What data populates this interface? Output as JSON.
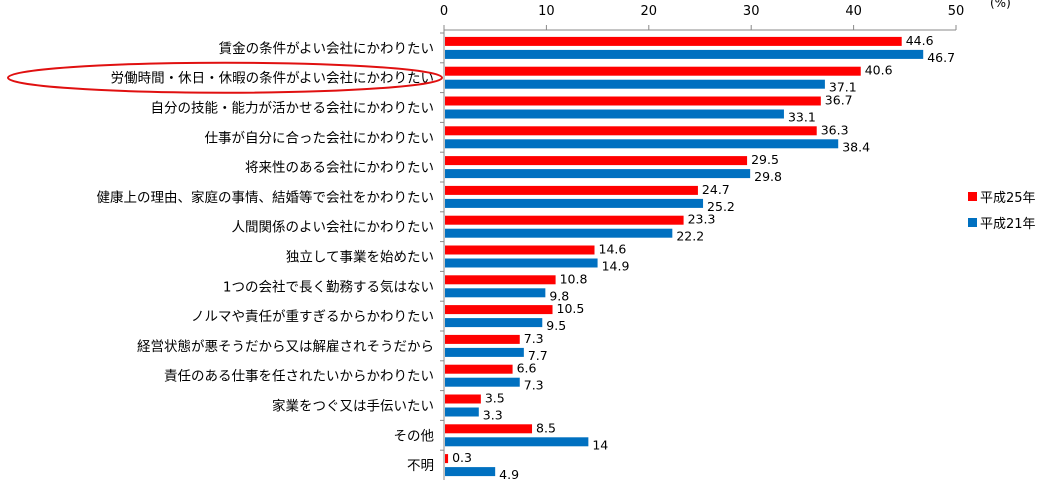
{
  "chart_data": {
    "type": "bar",
    "orientation": "horizontal",
    "unit_label": "(%)",
    "xlim": [
      0,
      50
    ],
    "x_ticks": [
      0,
      10,
      20,
      30,
      40,
      50
    ],
    "grid": false,
    "legend_position": "right",
    "categories": [
      "賃金の条件がよい会社にかわりたい",
      "労働時間・休日・休暇の条件がよい会社にかわりたい",
      "自分の技能・能力が活かせる会社にかわりたい",
      "仕事が自分に合った会社にかわりたい",
      "将来性のある会社にかわりたい",
      "健康上の理由、家庭の事情、結婚等で会社をかわりたい",
      "人間関係のよい会社にかわりたい",
      "独立して事業を始めたい",
      "1つの会社で長く勤務する気はない",
      "ノルマや責任が重すぎるからかわりたい",
      "経営状態が悪そうだから又は解雇されそうだから",
      "責任のある仕事を任されたいからかわりたい",
      "家業をつぐ又は手伝いたい",
      "その他",
      "不明"
    ],
    "highlighted_category": "労働時間・休日・休暇の条件がよい会社にかわりたい",
    "series": [
      {
        "name": "平成25年",
        "color": "#ff0000",
        "values": [
          44.6,
          40.6,
          36.7,
          36.3,
          29.5,
          24.7,
          23.3,
          14.6,
          10.8,
          10.5,
          7.3,
          6.6,
          3.5,
          8.5,
          0.3
        ],
        "labels": [
          "44.6",
          "40.6",
          "36.7",
          "36.3",
          "29.5",
          "24.7",
          "23.3",
          "14.6",
          "10.8",
          "10.5",
          "7.3",
          "6.6",
          "3.5",
          "8.5",
          "0.3"
        ]
      },
      {
        "name": "平成21年",
        "color": "#0070c0",
        "values": [
          46.7,
          37.1,
          33.1,
          38.4,
          29.8,
          25.2,
          22.2,
          14.9,
          9.8,
          9.5,
          7.7,
          7.3,
          3.3,
          14,
          4.9
        ],
        "labels": [
          "46.7",
          "37.1",
          "33.1",
          "38.4",
          "29.8",
          "25.2",
          "22.2",
          "14.9",
          "9.8",
          "9.5",
          "7.7",
          "7.3",
          "3.3",
          "14",
          "4.9"
        ]
      }
    ]
  }
}
